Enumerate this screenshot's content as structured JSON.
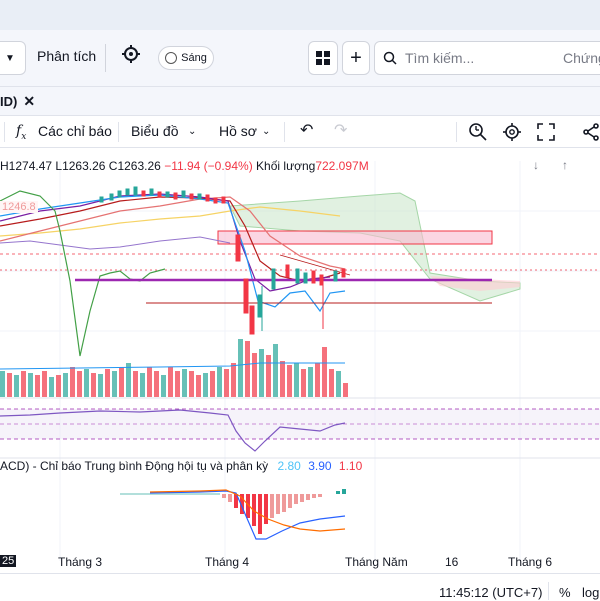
{
  "header": {
    "analysis_label": "Phân tích",
    "light_toggle_label": "Sáng",
    "search_placeholder": "Tìm kiếm...",
    "securities_label": "Chứng"
  },
  "tab": {
    "label": "ID)"
  },
  "toolbar": {
    "indicators_label": "Các chỉ báo",
    "chart_label": "Biểu đồ",
    "profile_label": "Hồ sơ"
  },
  "legend": {
    "high": "H1274.47",
    "low": "L1263.26",
    "close": "C1263.26",
    "change": "−11.94 (−0.94%)",
    "volume_label": "Khối lượng",
    "volume_value": "722.097M",
    "ma_label": "1246.8"
  },
  "macd": {
    "label": "ACD) - Chỉ báo Trung bình Động hội tụ và phân kỳ",
    "v1": "2.80",
    "v2": "3.90",
    "v3": "1.10"
  },
  "xaxis": {
    "year": "25",
    "ticks": [
      "Tháng 3",
      "Tháng 4",
      "Tháng Năm",
      "16",
      "Tháng 6"
    ]
  },
  "status": {
    "time": "11:45:12 (UTC+7)",
    "percent": "%",
    "log": "log"
  },
  "colors": {
    "up": "#26a69a",
    "down": "#f23645",
    "purple": "#9c27b0",
    "accent": "#2962ff"
  }
}
